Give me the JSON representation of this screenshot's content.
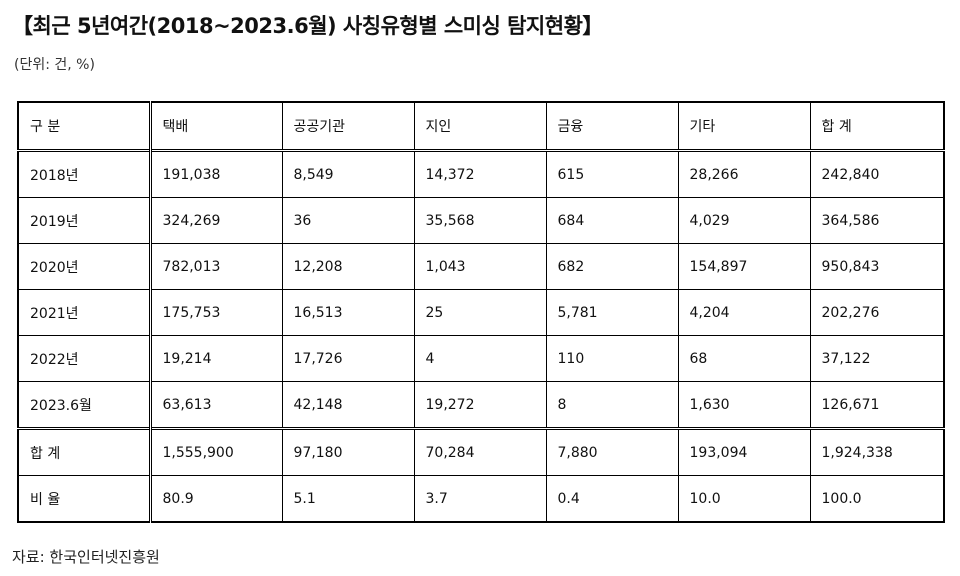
{
  "title": "【최근 5년여간(2018~2023.6월) 사칭유형별 스미싱 탐지현황】",
  "unit": "(단위: 건, %)",
  "source": "자료: 한국인터넷진흥원",
  "table": {
    "headers": [
      "구 분",
      "택배",
      "공공기관",
      "지인",
      "금융",
      "기타",
      "합 계"
    ],
    "rows": [
      [
        "2018년",
        "191,038",
        "8,549",
        "14,372",
        "615",
        "28,266",
        "242,840"
      ],
      [
        "2019년",
        "324,269",
        "36",
        "35,568",
        "684",
        "4,029",
        "364,586"
      ],
      [
        "2020년",
        "782,013",
        "12,208",
        "1,043",
        "682",
        "154,897",
        "950,843"
      ],
      [
        "2021년",
        "175,753",
        "16,513",
        "25",
        "5,781",
        "4,204",
        "202,276"
      ],
      [
        "2022년",
        "19,214",
        "17,726",
        "4",
        "110",
        "68",
        "37,122"
      ],
      [
        "2023.6월",
        "63,613",
        "42,148",
        "19,272",
        "8",
        "1,630",
        "126,671"
      ]
    ],
    "total": [
      "합 계",
      "1,555,900",
      "97,180",
      "70,284",
      "7,880",
      "193,094",
      "1,924,338"
    ],
    "ratio": [
      "비 율",
      "80.9",
      "5.1",
      "3.7",
      "0.4",
      "10.0",
      "100.0"
    ]
  }
}
